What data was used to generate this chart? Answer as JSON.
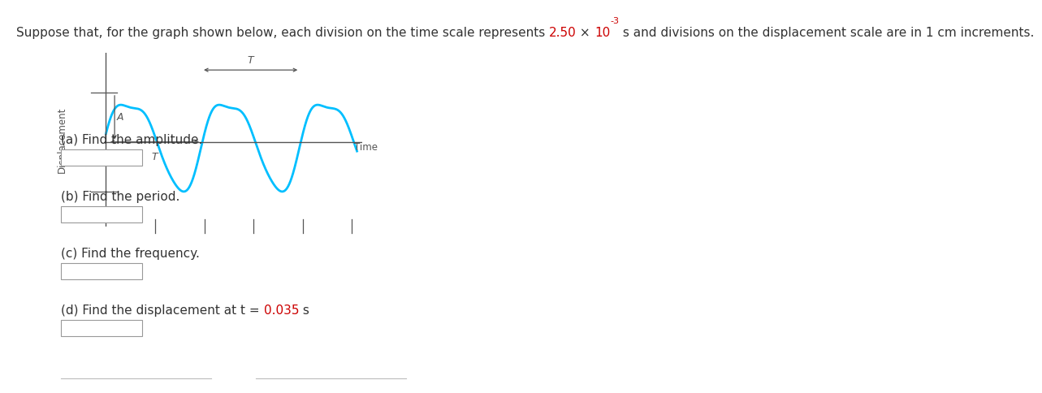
{
  "title_prefix": "Suppose that, for the graph shown below, each division on the time scale represents ",
  "title_red1": "2.50",
  "title_times": " × ",
  "title_red2": "10",
  "title_sup": "-3",
  "title_suffix": " s and divisions on the displacement scale are in 1 cm increments.",
  "title_fontsize": 11,
  "wave_color": "#00BFFF",
  "wave_linewidth": 2.0,
  "axis_color": "#555555",
  "annotation_color": "#555555",
  "text_color": "#333333",
  "red_color": "#cc0000",
  "background_color": "#ffffff",
  "questions": [
    "(a) Find the amplitude.",
    "(b) Find the period.",
    "(c) Find the frequency.",
    "(d) Find the displacement at "
  ],
  "question_d_red": "t",
  "question_d_black2": " = ",
  "question_d_red2": "0.035",
  "question_d_black3": " s"
}
